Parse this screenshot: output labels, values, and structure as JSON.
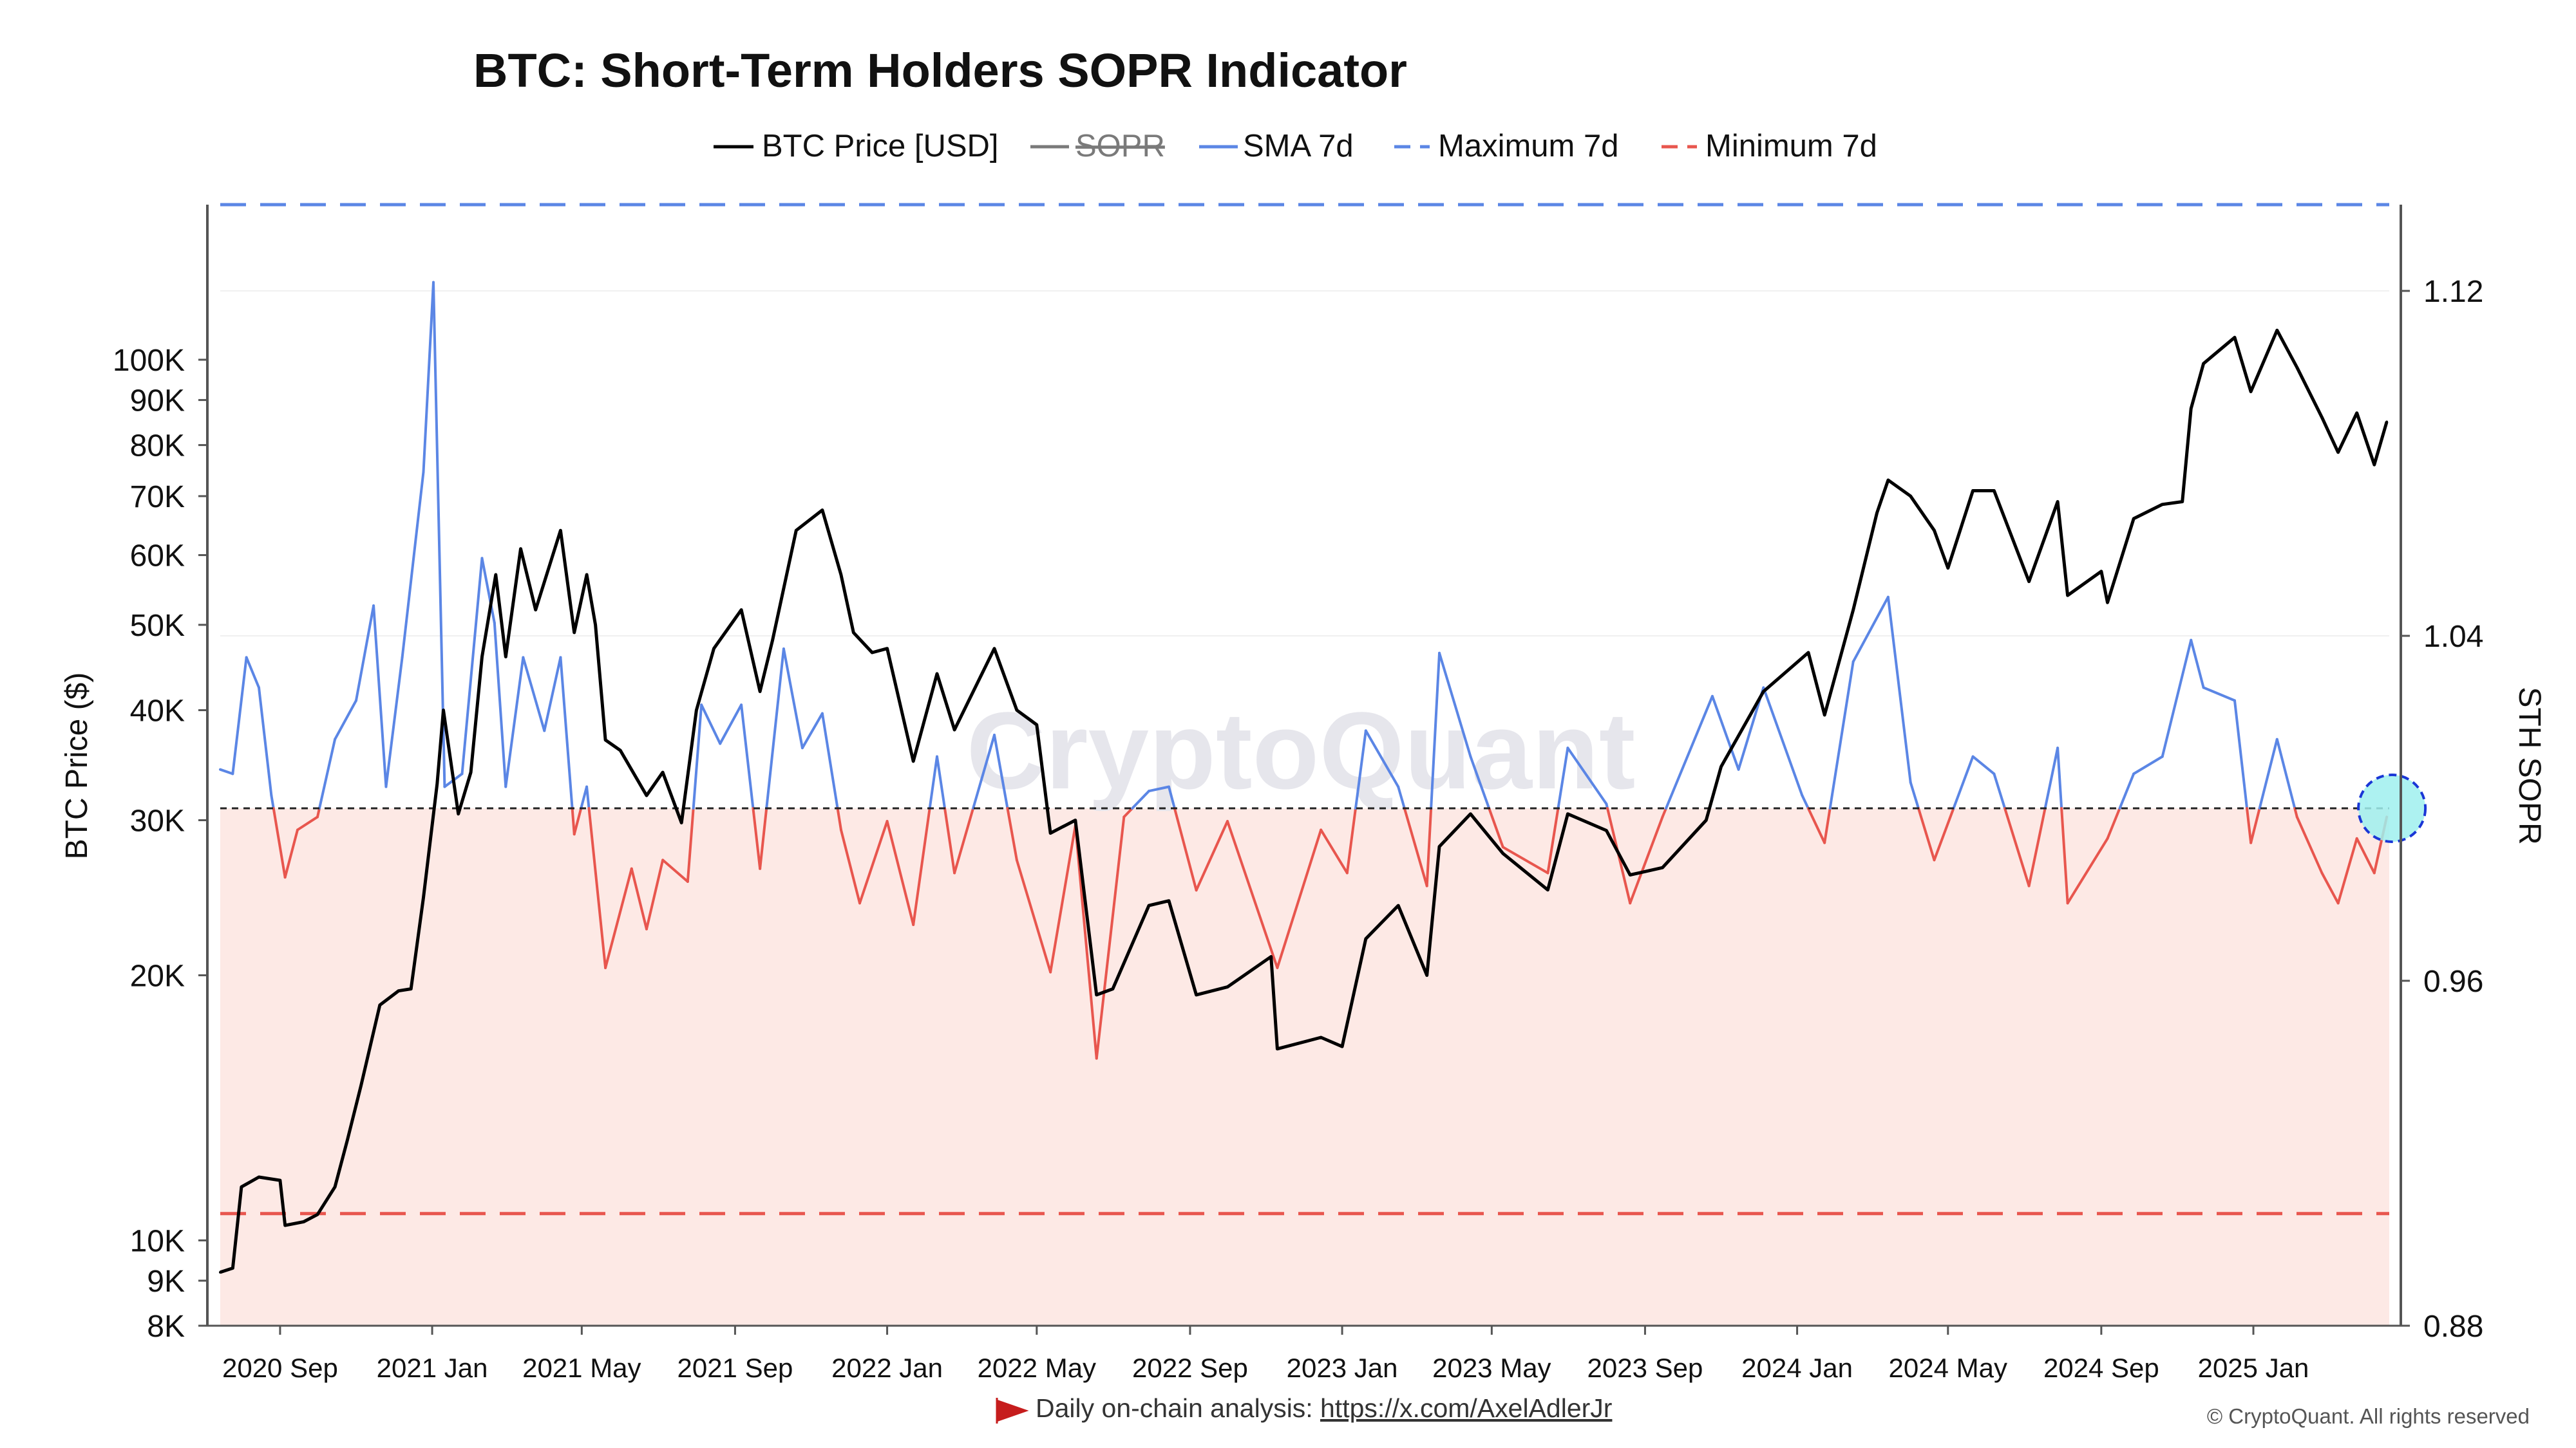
{
  "chart_data": {
    "type": "line",
    "title": "BTC: Short-Term Holders SOPR Indicator",
    "left_axis": {
      "label": "BTC Price ($)",
      "scale": "log",
      "range": [
        8000,
        150000
      ],
      "ticks": [
        8000,
        9000,
        10000,
        20000,
        30000,
        40000,
        50000,
        60000,
        70000,
        80000,
        90000,
        100000
      ],
      "tick_labels": [
        "8K",
        "9K",
        "10K",
        "20K",
        "30K",
        "40K",
        "50K",
        "60K",
        "70K",
        "80K",
        "90K",
        "100K"
      ]
    },
    "right_axis": {
      "label": "STH SOPR",
      "range": [
        0.88,
        1.14
      ],
      "ticks": [
        0.88,
        0.96,
        1.04,
        1.12
      ],
      "tick_labels": [
        "0.88",
        "0.96",
        "1.04",
        "1.12"
      ]
    },
    "x_axis": {
      "range": [
        "2020-07-15",
        "2025-04-20"
      ],
      "ticks": [
        "2020-09-01",
        "2021-01-01",
        "2021-05-01",
        "2021-09-01",
        "2022-01-01",
        "2022-05-01",
        "2022-09-01",
        "2023-01-01",
        "2023-05-01",
        "2023-09-01",
        "2024-01-01",
        "2024-05-01",
        "2024-09-01",
        "2025-01-01"
      ],
      "tick_labels": [
        "2020 Sep",
        "2021 Jan",
        "2021 May",
        "2021 Sep",
        "2022 Jan",
        "2022 May",
        "2022 Sep",
        "2023 Jan",
        "2023 May",
        "2023 Sep",
        "2024 Jan",
        "2024 May",
        "2024 Sep",
        "2025 Jan"
      ]
    },
    "legend": [
      {
        "label": "BTC Price [USD]",
        "color": "#000000",
        "style": "solid"
      },
      {
        "label": "SOPR",
        "color": "#7a7a7a",
        "style": "solid",
        "disabled": true
      },
      {
        "label": "SMA 7d",
        "color": "#5b86e5",
        "style": "solid"
      },
      {
        "label": "Maximum 7d",
        "color": "#5b86e5",
        "style": "dashed"
      },
      {
        "label": "Minimum 7d",
        "color": "#e8564e",
        "style": "dashed"
      }
    ],
    "legend_position": "top-center",
    "reference_lines": {
      "maximum_7d": 1.14,
      "minimum_7d": 0.906,
      "baseline": 1.0
    },
    "colors": {
      "above_baseline": "#5b86e5",
      "below_baseline": "#e8564e",
      "below_fill": "#fde9e5",
      "highlight": "#9ff0ef"
    },
    "btc_price": [
      [
        "2020-07-15",
        9200
      ],
      [
        "2020-07-25",
        9300
      ],
      [
        "2020-08-01",
        11500
      ],
      [
        "2020-08-15",
        11800
      ],
      [
        "2020-09-01",
        11700
      ],
      [
        "2020-09-05",
        10400
      ],
      [
        "2020-09-20",
        10500
      ],
      [
        "2020-10-01",
        10700
      ],
      [
        "2020-10-15",
        11500
      ],
      [
        "2020-10-25",
        13000
      ],
      [
        "2020-11-05",
        15000
      ],
      [
        "2020-11-20",
        18500
      ],
      [
        "2020-12-05",
        19200
      ],
      [
        "2020-12-15",
        19300
      ],
      [
        "2020-12-25",
        24500
      ],
      [
        "2021-01-05",
        33000
      ],
      [
        "2021-01-10",
        40000
      ],
      [
        "2021-01-22",
        30500
      ],
      [
        "2021-02-01",
        34000
      ],
      [
        "2021-02-10",
        46000
      ],
      [
        "2021-02-21",
        57000
      ],
      [
        "2021-03-01",
        46000
      ],
      [
        "2021-03-13",
        61000
      ],
      [
        "2021-03-25",
        52000
      ],
      [
        "2021-04-14",
        64000
      ],
      [
        "2021-04-25",
        49000
      ],
      [
        "2021-05-05",
        57000
      ],
      [
        "2021-05-12",
        50000
      ],
      [
        "2021-05-20",
        37000
      ],
      [
        "2021-06-01",
        36000
      ],
      [
        "2021-06-22",
        32000
      ],
      [
        "2021-07-05",
        34000
      ],
      [
        "2021-07-20",
        29800
      ],
      [
        "2021-08-01",
        40000
      ],
      [
        "2021-08-15",
        47000
      ],
      [
        "2021-09-06",
        52000
      ],
      [
        "2021-09-21",
        42000
      ],
      [
        "2021-10-01",
        48000
      ],
      [
        "2021-10-20",
        64000
      ],
      [
        "2021-11-10",
        67500
      ],
      [
        "2021-11-25",
        57000
      ],
      [
        "2021-12-05",
        49000
      ],
      [
        "2021-12-20",
        46500
      ],
      [
        "2022-01-01",
        47000
      ],
      [
        "2022-01-22",
        35000
      ],
      [
        "2022-02-10",
        44000
      ],
      [
        "2022-02-24",
        38000
      ],
      [
        "2022-03-28",
        47000
      ],
      [
        "2022-04-15",
        40000
      ],
      [
        "2022-05-01",
        38500
      ],
      [
        "2022-05-12",
        29000
      ],
      [
        "2022-06-01",
        30000
      ],
      [
        "2022-06-18",
        19000
      ],
      [
        "2022-07-01",
        19300
      ],
      [
        "2022-07-30",
        24000
      ],
      [
        "2022-08-15",
        24300
      ],
      [
        "2022-09-06",
        19000
      ],
      [
        "2022-10-01",
        19400
      ],
      [
        "2022-11-05",
        21000
      ],
      [
        "2022-11-10",
        16500
      ],
      [
        "2022-12-15",
        17000
      ],
      [
        "2023-01-01",
        16600
      ],
      [
        "2023-01-20",
        22000
      ],
      [
        "2023-02-15",
        24000
      ],
      [
        "2023-03-10",
        20000
      ],
      [
        "2023-03-20",
        28000
      ],
      [
        "2023-04-14",
        30500
      ],
      [
        "2023-05-10",
        27500
      ],
      [
        "2023-06-15",
        25000
      ],
      [
        "2023-07-01",
        30500
      ],
      [
        "2023-08-01",
        29200
      ],
      [
        "2023-08-20",
        26000
      ],
      [
        "2023-09-15",
        26500
      ],
      [
        "2023-10-20",
        30000
      ],
      [
        "2023-11-01",
        34500
      ],
      [
        "2023-12-05",
        42000
      ],
      [
        "2024-01-10",
        46500
      ],
      [
        "2024-01-23",
        39500
      ],
      [
        "2024-02-15",
        52000
      ],
      [
        "2024-03-05",
        67000
      ],
      [
        "2024-03-14",
        73000
      ],
      [
        "2024-04-01",
        70000
      ],
      [
        "2024-04-20",
        64000
      ],
      [
        "2024-05-01",
        58000
      ],
      [
        "2024-05-21",
        71000
      ],
      [
        "2024-06-07",
        71000
      ],
      [
        "2024-07-05",
        56000
      ],
      [
        "2024-07-28",
        69000
      ],
      [
        "2024-08-05",
        54000
      ],
      [
        "2024-09-01",
        57500
      ],
      [
        "2024-09-06",
        53000
      ],
      [
        "2024-09-27",
        66000
      ],
      [
        "2024-10-20",
        68500
      ],
      [
        "2024-11-05",
        69000
      ],
      [
        "2024-11-12",
        88000
      ],
      [
        "2024-11-22",
        99000
      ],
      [
        "2024-12-17",
        106000
      ],
      [
        "2024-12-30",
        92000
      ],
      [
        "2025-01-20",
        108000
      ],
      [
        "2025-02-05",
        98000
      ],
      [
        "2025-02-25",
        86000
      ],
      [
        "2025-03-10",
        78500
      ],
      [
        "2025-03-25",
        87000
      ],
      [
        "2025-04-08",
        76000
      ],
      [
        "2025-04-18",
        85000
      ]
    ],
    "sma_7d": [
      [
        "2020-07-15",
        1.009
      ],
      [
        "2020-07-25",
        1.008
      ],
      [
        "2020-08-05",
        1.035
      ],
      [
        "2020-08-15",
        1.028
      ],
      [
        "2020-08-25",
        1.003
      ],
      [
        "2020-09-05",
        0.984
      ],
      [
        "2020-09-15",
        0.995
      ],
      [
        "2020-10-01",
        0.998
      ],
      [
        "2020-10-15",
        1.016
      ],
      [
        "2020-11-01",
        1.025
      ],
      [
        "2020-11-15",
        1.047
      ],
      [
        "2020-11-25",
        1.005
      ],
      [
        "2020-12-08",
        1.035
      ],
      [
        "2020-12-25",
        1.078
      ],
      [
        "2021-01-02",
        1.122
      ],
      [
        "2021-01-11",
        1.005
      ],
      [
        "2021-01-25",
        1.008
      ],
      [
        "2021-02-10",
        1.058
      ],
      [
        "2021-02-20",
        1.043
      ],
      [
        "2021-03-01",
        1.005
      ],
      [
        "2021-03-15",
        1.035
      ],
      [
        "2021-04-01",
        1.018
      ],
      [
        "2021-04-14",
        1.035
      ],
      [
        "2021-04-25",
        0.994
      ],
      [
        "2021-05-05",
        1.005
      ],
      [
        "2021-05-20",
        0.963
      ],
      [
        "2021-06-10",
        0.986
      ],
      [
        "2021-06-22",
        0.972
      ],
      [
        "2021-07-05",
        0.988
      ],
      [
        "2021-07-25",
        0.983
      ],
      [
        "2021-08-05",
        1.024
      ],
      [
        "2021-08-20",
        1.015
      ],
      [
        "2021-09-06",
        1.024
      ],
      [
        "2021-09-21",
        0.986
      ],
      [
        "2021-10-10",
        1.037
      ],
      [
        "2021-10-25",
        1.014
      ],
      [
        "2021-11-10",
        1.022
      ],
      [
        "2021-11-25",
        0.995
      ],
      [
        "2021-12-10",
        0.978
      ],
      [
        "2022-01-01",
        0.997
      ],
      [
        "2022-01-22",
        0.973
      ],
      [
        "2022-02-10",
        1.012
      ],
      [
        "2022-02-24",
        0.985
      ],
      [
        "2022-03-28",
        1.017
      ],
      [
        "2022-04-15",
        0.988
      ],
      [
        "2022-05-12",
        0.962
      ],
      [
        "2022-06-01",
        0.996
      ],
      [
        "2022-06-18",
        0.942
      ],
      [
        "2022-07-10",
        0.998
      ],
      [
        "2022-07-30",
        1.004
      ],
      [
        "2022-08-15",
        1.005
      ],
      [
        "2022-09-06",
        0.981
      ],
      [
        "2022-10-01",
        0.997
      ],
      [
        "2022-11-10",
        0.963
      ],
      [
        "2022-12-15",
        0.995
      ],
      [
        "2023-01-05",
        0.985
      ],
      [
        "2023-01-20",
        1.018
      ],
      [
        "2023-02-15",
        1.005
      ],
      [
        "2023-03-10",
        0.982
      ],
      [
        "2023-03-20",
        1.036
      ],
      [
        "2023-04-14",
        1.012
      ],
      [
        "2023-05-10",
        0.991
      ],
      [
        "2023-06-15",
        0.985
      ],
      [
        "2023-07-01",
        1.014
      ],
      [
        "2023-08-01",
        1.001
      ],
      [
        "2023-08-20",
        0.978
      ],
      [
        "2023-09-15",
        0.998
      ],
      [
        "2023-10-25",
        1.026
      ],
      [
        "2023-11-15",
        1.009
      ],
      [
        "2023-12-05",
        1.028
      ],
      [
        "2024-01-05",
        1.003
      ],
      [
        "2024-01-23",
        0.992
      ],
      [
        "2024-02-15",
        1.034
      ],
      [
        "2024-03-14",
        1.049
      ],
      [
        "2024-04-01",
        1.006
      ],
      [
        "2024-04-20",
        0.988
      ],
      [
        "2024-05-21",
        1.012
      ],
      [
        "2024-06-07",
        1.008
      ],
      [
        "2024-07-05",
        0.982
      ],
      [
        "2024-07-28",
        1.014
      ],
      [
        "2024-08-05",
        0.978
      ],
      [
        "2024-09-06",
        0.993
      ],
      [
        "2024-09-27",
        1.008
      ],
      [
        "2024-10-20",
        1.012
      ],
      [
        "2024-11-12",
        1.039
      ],
      [
        "2024-11-22",
        1.028
      ],
      [
        "2024-12-17",
        1.025
      ],
      [
        "2024-12-30",
        0.992
      ],
      [
        "2025-01-20",
        1.016
      ],
      [
        "2025-02-05",
        0.998
      ],
      [
        "2025-02-25",
        0.985
      ],
      [
        "2025-03-10",
        0.978
      ],
      [
        "2025-03-25",
        0.993
      ],
      [
        "2025-04-08",
        0.985
      ],
      [
        "2025-04-18",
        0.998
      ]
    ]
  },
  "watermark": "CryptoQuant",
  "footer": {
    "analysis_text": "Daily on-chain analysis:",
    "link": "https://x.com/AxelAdlerJr",
    "copyright": "© CryptoQuant. All rights reserved"
  }
}
